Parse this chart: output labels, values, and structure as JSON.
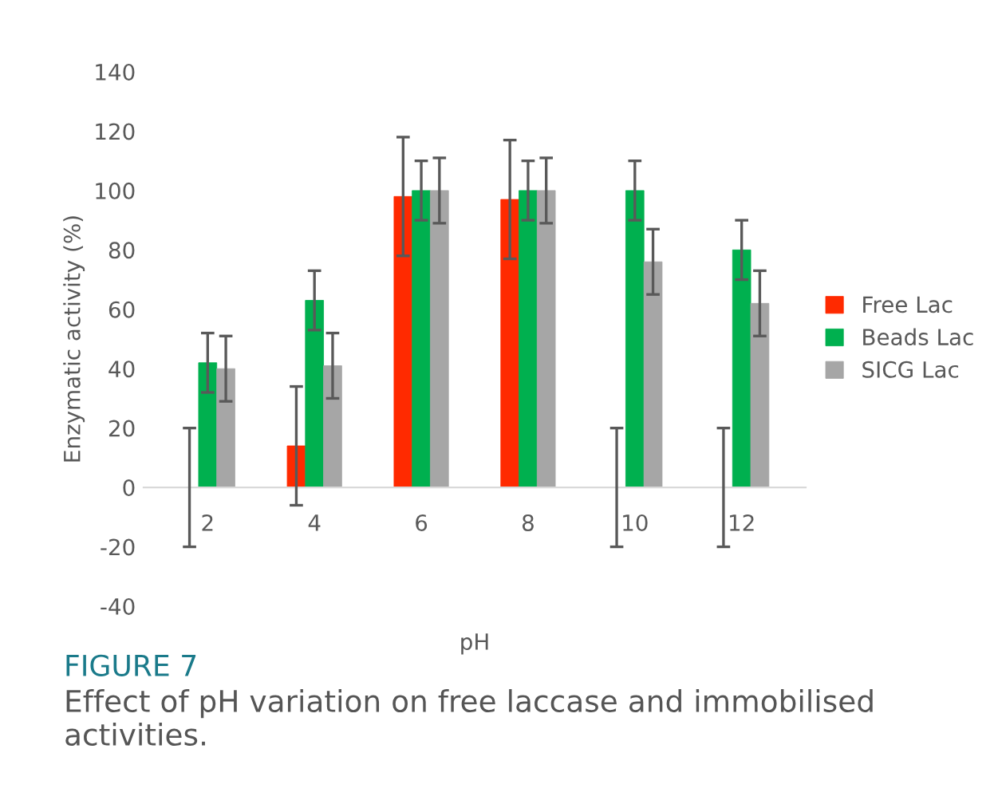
{
  "chart_data": {
    "type": "bar",
    "xlabel": "pH",
    "ylabel": "Enzymatic activity (%)",
    "categories": [
      "2",
      "4",
      "6",
      "8",
      "10",
      "12"
    ],
    "series": [
      {
        "name": "Free Lac",
        "color": "#ff2a00",
        "values": [
          0,
          14,
          98,
          97,
          0,
          0
        ],
        "errors": [
          20,
          20,
          20,
          20,
          20,
          20
        ]
      },
      {
        "name": "Beads Lac",
        "color": "#00b04f",
        "values": [
          42,
          63,
          100,
          100,
          100,
          80
        ],
        "errors": [
          10,
          10,
          10,
          10,
          10,
          10
        ]
      },
      {
        "name": "SICG Lac",
        "color": "#a6a6a6",
        "values": [
          40,
          41,
          100,
          100,
          76,
          62
        ],
        "errors": [
          11,
          11,
          11,
          11,
          11,
          11
        ]
      }
    ],
    "ylim": [
      -40,
      140
    ],
    "yticks": [
      -40,
      -20,
      0,
      20,
      40,
      60,
      80,
      100,
      120,
      140
    ],
    "grid": false,
    "legend": "right",
    "annotations": [
      "FIGURE 7",
      "Effect of pH variation on free laccase and immobilised activities."
    ]
  }
}
